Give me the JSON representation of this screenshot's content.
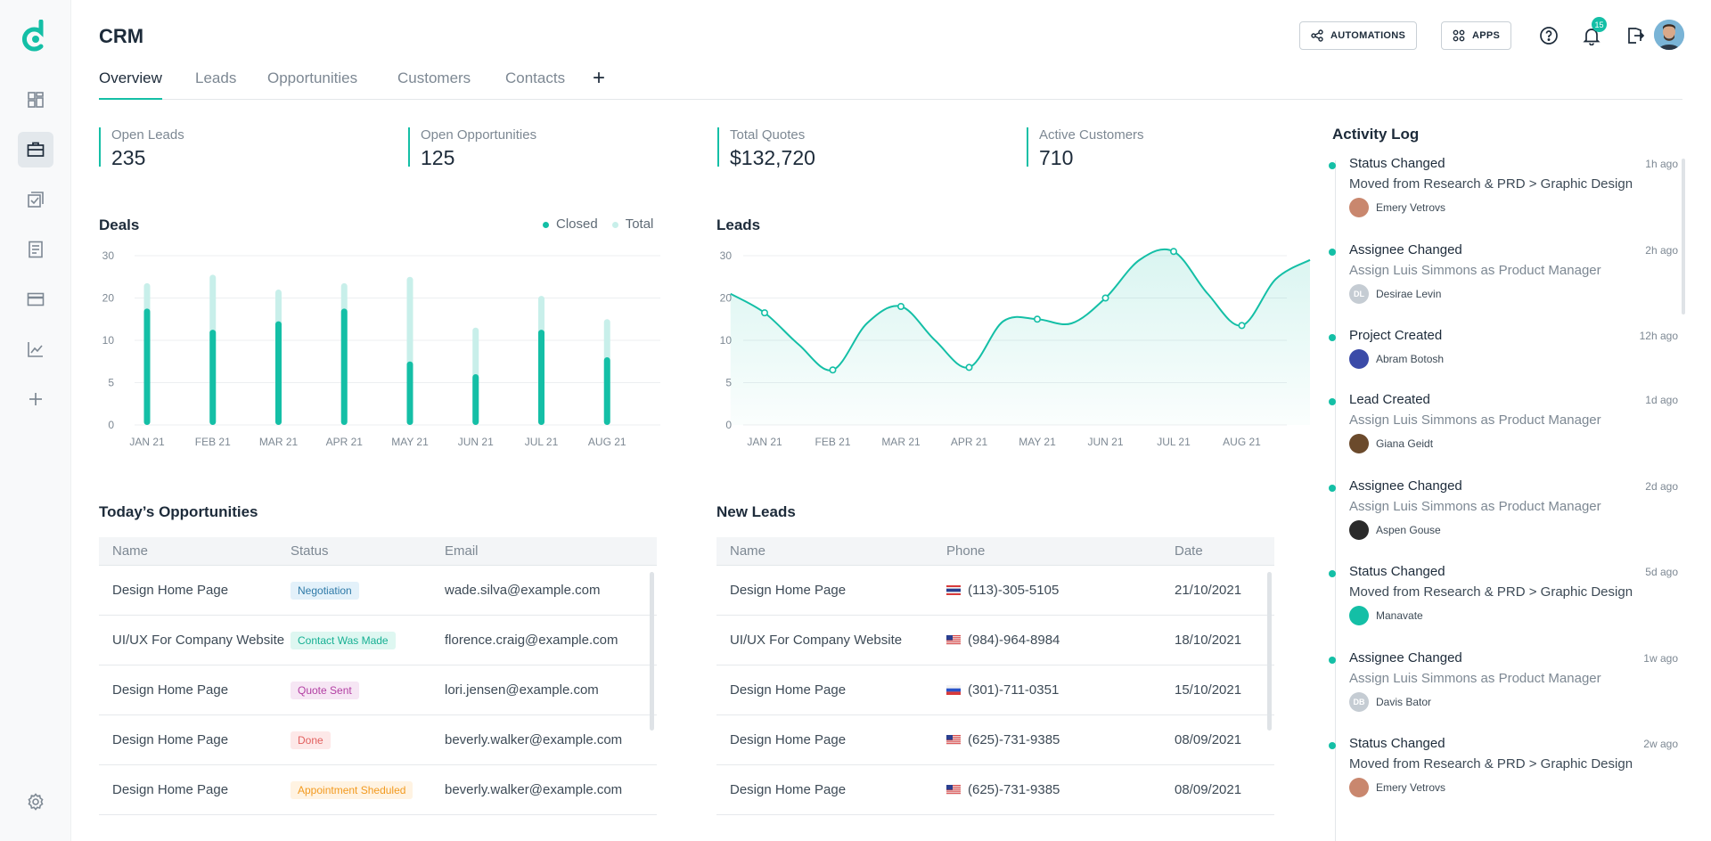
{
  "app": {
    "title": "CRM"
  },
  "tabs": [
    "Overview",
    "Leads",
    "Opportunities",
    "Customers",
    "Contacts"
  ],
  "header": {
    "automations_label": "AUTOMATIONS",
    "apps_label": "APPS",
    "notification_count": "15"
  },
  "colors": {
    "accent": "#14bfa6",
    "accent_light": "#c8efea"
  },
  "stats": [
    {
      "label": "Open Leads",
      "value": "235"
    },
    {
      "label": "Open Opportunities",
      "value": "125"
    },
    {
      "label": "Total Quotes",
      "value": "$132,720"
    },
    {
      "label": "Active Customers",
      "value": "710"
    }
  ],
  "deals": {
    "title": "Deals",
    "legend_closed": "Closed",
    "legend_total": "Total"
  },
  "leads_chart": {
    "title": "Leads"
  },
  "chart_data": [
    {
      "type": "bar",
      "title": "Deals",
      "categories": [
        "JAN 21",
        "FEB 21",
        "MAR 21",
        "APR 21",
        "MAY 21",
        "JUN 21",
        "JUL 21",
        "AUG 21"
      ],
      "series": [
        {
          "name": "Closed",
          "values": [
            17.5,
            12.5,
            14.5,
            17.5,
            7.5,
            6,
            12.5,
            8
          ]
        },
        {
          "name": "Total",
          "values": [
            23.5,
            25.5,
            22,
            23.5,
            25,
            13,
            20.5,
            15
          ]
        }
      ],
      "y_ticks": [
        "0",
        "5",
        "10",
        "20",
        "30"
      ],
      "legend": "top-right"
    },
    {
      "type": "area",
      "title": "Leads",
      "categories": [
        "JAN 21",
        "FEB 21",
        "MAR 21",
        "APR 21",
        "MAY 21",
        "JUN 21",
        "JUL 21",
        "AUG 21"
      ],
      "x": [
        0,
        0.5,
        1,
        1.5,
        2,
        2.5,
        3,
        3.5,
        4,
        4.5,
        5,
        5.5,
        6,
        6.5,
        7,
        7.5,
        8,
        8.5
      ],
      "y": [
        21,
        16.5,
        9.5,
        6.5,
        14,
        18,
        10,
        6.8,
        14.5,
        15,
        14,
        20,
        29,
        31,
        21,
        13.5,
        24.5,
        29
      ],
      "marker_x": [
        0.5,
        1.5,
        2.5,
        3.5,
        4.5,
        5.5,
        6.5,
        7.5
      ],
      "y_ticks": [
        "0",
        "5",
        "10",
        "20",
        "30"
      ]
    }
  ],
  "opportunities": {
    "title": "Today’s Opportunities",
    "columns": [
      "Name",
      "Status",
      "Email"
    ],
    "rows": [
      {
        "name": "Design Home Page",
        "status": "Negotiation",
        "status_bg": "#e3f1fa",
        "status_fg": "#2f7aa8",
        "email": "wade.silva@example.com"
      },
      {
        "name": "UI/UX For Company Website",
        "status": "Contact Was Made",
        "status_bg": "#def7f1",
        "status_fg": "#16b093",
        "email": "florence.craig@example.com"
      },
      {
        "name": "Design Home Page",
        "status": "Quote Sent",
        "status_bg": "#f6e6f4",
        "status_fg": "#b23fa3",
        "email": "lori.jensen@example.com"
      },
      {
        "name": "Design Home Page",
        "status": "Done",
        "status_bg": "#fde8e8",
        "status_fg": "#e2605f",
        "email": "beverly.walker@example.com"
      },
      {
        "name": "Design Home Page",
        "status": "Appointment Sheduled",
        "status_bg": "#fff3e2",
        "status_fg": "#f29a1f",
        "email": "beverly.walker@example.com"
      }
    ]
  },
  "new_leads": {
    "title": "New Leads",
    "columns": [
      "Name",
      "Phone",
      "Date"
    ],
    "rows": [
      {
        "name": "Design Home Page",
        "flag": "thai-flag-icon",
        "phone": "(113)-305-5105",
        "date": "21/10/2021"
      },
      {
        "name": "UI/UX For Company Website",
        "flag": "us-flag-icon",
        "phone": "(984)-964-8984",
        "date": "18/10/2021"
      },
      {
        "name": "Design Home Page",
        "flag": "russia-flag-icon",
        "phone": "(301)-711-0351",
        "date": "15/10/2021"
      },
      {
        "name": "Design Home Page",
        "flag": "us-flag-icon",
        "phone": "(625)-731-9385",
        "date": "08/09/2021"
      },
      {
        "name": "Design Home Page",
        "flag": "us-flag-icon",
        "phone": "(625)-731-9385",
        "date": "08/09/2021"
      }
    ]
  },
  "activity": {
    "title": "Activity Log",
    "items": [
      {
        "title": "Status Changed",
        "time": "1h ago",
        "desc": "Moved from Research & PRD > Graphic Design",
        "user": "Emery Vetrovs",
        "initials": "",
        "avatar_color": "#c9876e"
      },
      {
        "title": "Assignee Changed",
        "time": "2h ago",
        "desc": "Assign Luis Simmons as Product Manager",
        "user": "Desirae Levin",
        "initials": "DL",
        "avatar_color": "#c5ccd3"
      },
      {
        "title": "Project Created",
        "time": "12h ago",
        "desc": "",
        "user": "Abram Botosh",
        "initials": "",
        "avatar_color": "#3b4ba8"
      },
      {
        "title": "Lead Created",
        "time": "1d ago",
        "desc": "Assign Luis Simmons as Product Manager",
        "user": "Giana Geidt",
        "initials": "",
        "avatar_color": "#6b4a2c"
      },
      {
        "title": "Assignee Changed",
        "time": "2d ago",
        "desc": "Assign Luis Simmons as Product Manager",
        "user": "Aspen Gouse",
        "initials": "",
        "avatar_color": "#2a2a2a"
      },
      {
        "title": "Status Changed",
        "time": "5d ago",
        "desc": "Moved from Research & PRD > Graphic Design",
        "user": "Manavate",
        "initials": "",
        "avatar_color": "#14bfa6"
      },
      {
        "title": "Assignee Changed",
        "time": "1w ago",
        "desc": "Assign Luis Simmons as Product Manager",
        "user": "Davis Bator",
        "initials": "DB",
        "avatar_color": "#c5ccd3"
      },
      {
        "title": "Status Changed",
        "time": "2w ago",
        "desc": "Moved from Research & PRD > Graphic Design",
        "user": "Emery Vetrovs",
        "initials": "",
        "avatar_color": "#c9876e"
      }
    ]
  }
}
